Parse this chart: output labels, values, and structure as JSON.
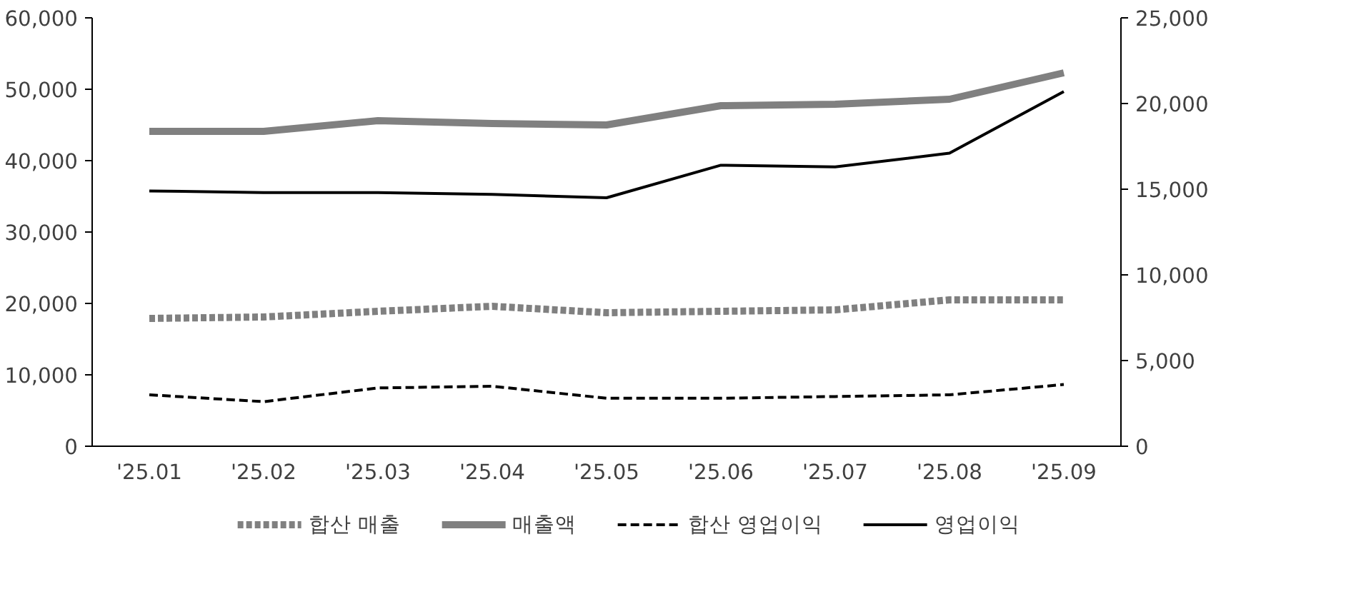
{
  "chart_data": {
    "type": "line",
    "categories": [
      "'25.01",
      "'25.02",
      "'25.03",
      "'25.04",
      "'25.05",
      "'25.06",
      "'25.07",
      "'25.08",
      "'25.09"
    ],
    "series": [
      {
        "name": "합산 매출",
        "color": "#808080",
        "line_style": "dashed",
        "values": [
          17900,
          18100,
          18900,
          19600,
          18700,
          18900,
          19100,
          20500,
          20500
        ]
      },
      {
        "name": "매출액",
        "color": "#808080",
        "line_style": "solid",
        "values": [
          44100,
          44100,
          45600,
          45200,
          45000,
          47700,
          47900,
          48600,
          52300
        ]
      },
      {
        "name": "합산 영업이익",
        "color": "#000000",
        "line_style": "dashed",
        "axis": "y2",
        "values": [
          3000,
          2600,
          3400,
          3500,
          2800,
          2800,
          2900,
          3000,
          3600
        ]
      },
      {
        "name": "영업이익",
        "color": "#000000",
        "line_style": "solid",
        "axis": "y2",
        "values": [
          14900,
          14800,
          14800,
          14700,
          14500,
          16400,
          16300,
          17100,
          20700
        ]
      }
    ],
    "ylim": [
      0,
      60000
    ],
    "yticks": [
      {
        "value": 0,
        "label": "0"
      },
      {
        "value": 10000,
        "label": "10,000"
      },
      {
        "value": 20000,
        "label": "20,000"
      },
      {
        "value": 30000,
        "label": "30,000"
      },
      {
        "value": 40000,
        "label": "40,000"
      },
      {
        "value": 50000,
        "label": "50,000"
      },
      {
        "value": 60000,
        "label": "60,000"
      }
    ],
    "y2lim": [
      0,
      25000
    ],
    "y2ticks": [
      {
        "value": 0,
        "label": "0"
      },
      {
        "value": 5000,
        "label": "5,000"
      },
      {
        "value": 10000,
        "label": "10,000"
      },
      {
        "value": 15000,
        "label": "15,000"
      },
      {
        "value": 20000,
        "label": "20,000"
      },
      {
        "value": 25000,
        "label": "25,000"
      }
    ],
    "legend": "bottom"
  }
}
